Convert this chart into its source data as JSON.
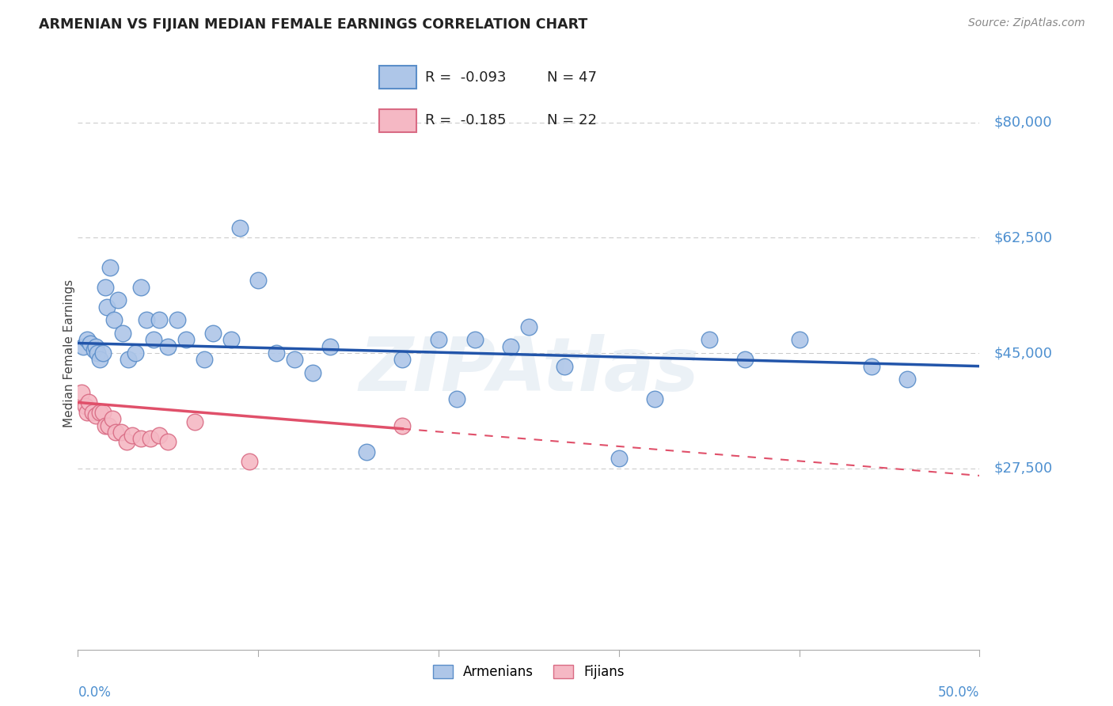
{
  "title": "ARMENIAN VS FIJIAN MEDIAN FEMALE EARNINGS CORRELATION CHART",
  "source": "Source: ZipAtlas.com",
  "ylabel": "Median Female Earnings",
  "xlim": [
    0.0,
    50.0
  ],
  "ylim": [
    0,
    90000
  ],
  "yticks": [
    0,
    27500,
    45000,
    62500,
    80000
  ],
  "background_color": "#ffffff",
  "grid_color": "#c8c8c8",
  "armenian_color": "#aec6e8",
  "armenian_edge_color": "#5b8ec9",
  "fijian_color": "#f5b8c4",
  "fijian_edge_color": "#d96b84",
  "trend_armenian_color": "#2255aa",
  "trend_fijian_color": "#e0506a",
  "ytick_right_labels": [
    "$80,000",
    "$62,500",
    "$45,000",
    "$27,500"
  ],
  "ytick_right_values": [
    80000,
    62500,
    45000,
    27500
  ],
  "ytick_label_color": "#4e90d0",
  "legend_label_armenian": "Armenians",
  "legend_label_fijian": "Fijians",
  "legend_R_armenian": "R = -0.093",
  "legend_N_armenian": "N = 47",
  "legend_R_fijian": "R = -0.185",
  "legend_N_fijian": "N = 22",
  "watermark": "ZIPAtlas",
  "armenian_x": [
    0.3,
    0.5,
    0.7,
    0.9,
    1.0,
    1.1,
    1.2,
    1.4,
    1.5,
    1.6,
    1.8,
    2.0,
    2.2,
    2.5,
    2.8,
    3.2,
    3.5,
    3.8,
    4.2,
    4.5,
    5.0,
    5.5,
    6.0,
    7.0,
    7.5,
    8.5,
    9.0,
    10.0,
    11.0,
    12.0,
    13.0,
    14.0,
    16.0,
    18.0,
    20.0,
    21.0,
    22.0,
    24.0,
    25.0,
    27.0,
    30.0,
    32.0,
    35.0,
    37.0,
    40.0,
    44.0,
    46.0
  ],
  "armenian_y": [
    46000,
    47000,
    46500,
    45500,
    46000,
    45000,
    44000,
    45000,
    55000,
    52000,
    58000,
    50000,
    53000,
    48000,
    44000,
    45000,
    55000,
    50000,
    47000,
    50000,
    46000,
    50000,
    47000,
    44000,
    48000,
    47000,
    64000,
    56000,
    45000,
    44000,
    42000,
    46000,
    30000,
    44000,
    47000,
    38000,
    47000,
    46000,
    49000,
    43000,
    29000,
    38000,
    47000,
    44000,
    47000,
    43000,
    41000
  ],
  "fijian_x": [
    0.2,
    0.4,
    0.5,
    0.6,
    0.8,
    1.0,
    1.2,
    1.4,
    1.5,
    1.7,
    1.9,
    2.1,
    2.4,
    2.7,
    3.0,
    3.5,
    4.0,
    4.5,
    5.0,
    6.5,
    9.5,
    18.0
  ],
  "fijian_y": [
    39000,
    37000,
    36000,
    37500,
    36000,
    35500,
    36000,
    36000,
    34000,
    34000,
    35000,
    33000,
    33000,
    31500,
    32500,
    32000,
    32000,
    32500,
    31500,
    34500,
    28500,
    34000
  ],
  "fijian_solid_end_x": 18.0
}
